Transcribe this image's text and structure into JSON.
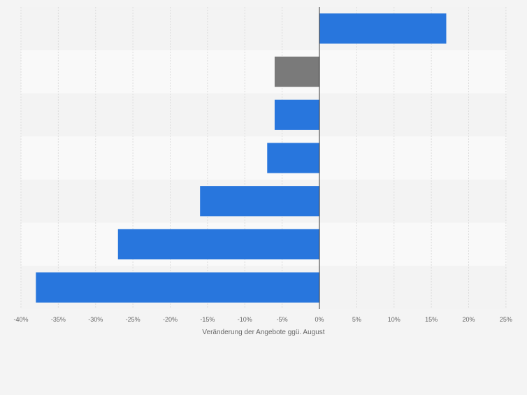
{
  "chart_data": {
    "type": "bar",
    "orientation": "horizontal",
    "categories": [
      "",
      "",
      "",
      "",
      "",
      "",
      ""
    ],
    "values": [
      17,
      -6,
      -6,
      -7,
      -16,
      -27,
      -38
    ],
    "highlighted_index": 1,
    "xlabel": "Veränderung der Angebote ggü. August",
    "ylabel": "",
    "xlim": [
      -40,
      25
    ],
    "x_ticks": [
      -40,
      -35,
      -30,
      -25,
      -20,
      -15,
      -10,
      -5,
      0,
      5,
      10,
      15,
      20,
      25
    ],
    "x_tick_labels": [
      "-40%",
      "-35%",
      "-30%",
      "-25%",
      "-20%",
      "-15%",
      "-10%",
      "-5%",
      "0%",
      "5%",
      "10%",
      "15%",
      "20%",
      "25%"
    ],
    "grid": true,
    "legend": "none",
    "colors": {
      "bar": "#2876dd",
      "highlight": "#7a7a7a",
      "band_light": "#f9f9f9",
      "band_dark": "#f3f3f3",
      "grid": "#dcdcdc",
      "axis": "#333333",
      "tick_text": "#666666"
    }
  }
}
